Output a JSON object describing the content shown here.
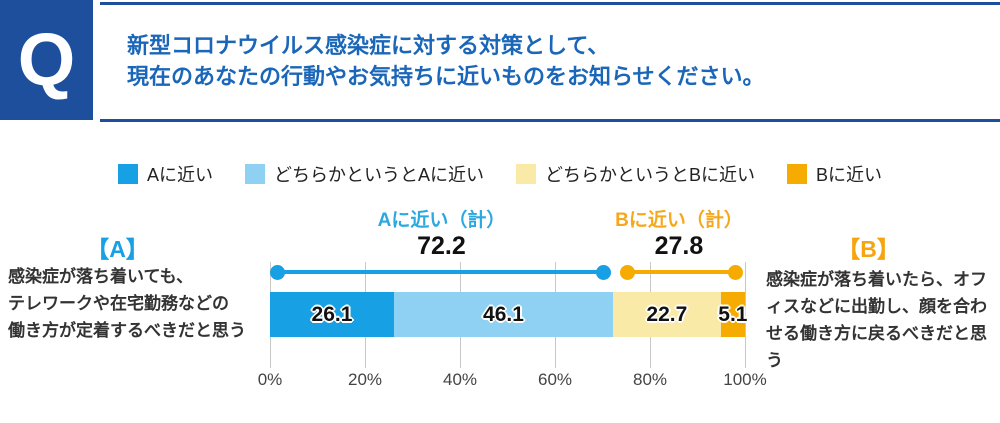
{
  "header": {
    "q_mark": "Q",
    "question_line1": "新型コロナウイルス感染症に対する対策として、",
    "question_line2": "現在のあなたの行動やお気持ちに近いものをお知らせください。"
  },
  "colors": {
    "header_blue": "#1d4f9d",
    "question_text_blue": "#1a66b8",
    "series_a": "#18a0e4",
    "series_rather_a": "#8ed1f2",
    "series_rather_b": "#faeaa8",
    "series_b": "#f6ab00",
    "summary_a_text": "#2aa9e0",
    "summary_b_text": "#f6a81c",
    "grid": "#c8c8c8"
  },
  "legend": [
    {
      "label": "Aに近い",
      "color": "#18a0e4"
    },
    {
      "label": "どちらかというとAに近い",
      "color": "#8ed1f2"
    },
    {
      "label": "どちらかというとBに近い",
      "color": "#faeaa8"
    },
    {
      "label": "Bに近い",
      "color": "#f6ab00"
    }
  ],
  "side_a": {
    "title": "【A】",
    "line1": "感染症が落ち着いても、",
    "line2": "テレワークや在宅勤務などの",
    "line3": "働き方が定着するべきだと思う"
  },
  "side_b": {
    "title": "【B】",
    "text": "感染症が落ち着いたら、オフィスなどに出勤し、顔を合わせる働き方に戻るべきだと思う"
  },
  "chart_data": {
    "type": "bar",
    "stacked": true,
    "orientation": "horizontal",
    "xlim": [
      0,
      100
    ],
    "x_ticks": [
      "0%",
      "20%",
      "40%",
      "60%",
      "80%",
      "100%"
    ],
    "grid": true,
    "series": [
      {
        "name": "Aに近い",
        "value": 26.1,
        "color": "#18a0e4"
      },
      {
        "name": "どちらかというとAに近い",
        "value": 46.1,
        "color": "#8ed1f2"
      },
      {
        "name": "どちらかというとBに近い",
        "value": 22.7,
        "color": "#faeaa8"
      },
      {
        "name": "Bに近い",
        "value": 5.1,
        "color": "#f6ab00"
      }
    ],
    "summaries": [
      {
        "label": "Aに近い（計）",
        "value": 72.2,
        "span": [
          0,
          72.2
        ],
        "text_color": "#2aa9e0",
        "line_color": "#18a0e4"
      },
      {
        "label": "Bに近い（計）",
        "value": 27.8,
        "span": [
          72.2,
          100
        ],
        "text_color": "#f6a81c",
        "line_color": "#f6ab00"
      }
    ]
  }
}
